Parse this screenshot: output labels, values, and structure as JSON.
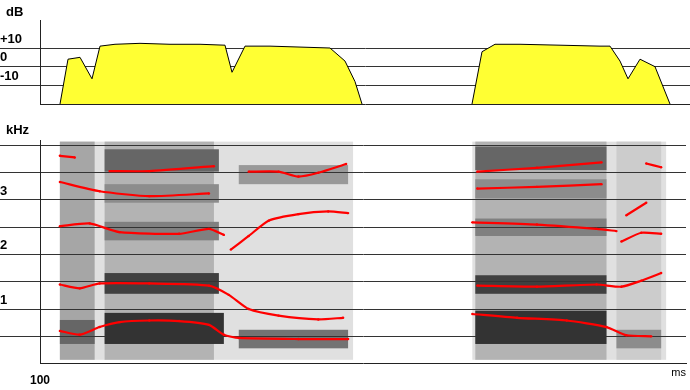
{
  "chart_data": [
    {
      "type": "area",
      "ylabel": "dB",
      "color": "#ffff33",
      "x": [
        120,
        128,
        140,
        152,
        160,
        175,
        200,
        230,
        260,
        285,
        292,
        305,
        330,
        360,
        390,
        405,
        415,
        422,
        480,
        532,
        542,
        555,
        580,
        620,
        660,
        670,
        680,
        688,
        700,
        715,
        730
      ],
      "values": [
        -20,
        4,
        5,
        -6.5,
        11,
        12,
        12.5,
        12,
        12,
        11.5,
        -3,
        11,
        11,
        10.5,
        10,
        3,
        -8,
        -20,
        null,
        -20,
        8,
        12,
        12,
        11.5,
        11,
        11,
        3,
        -6.5,
        4,
        0,
        -20
      ],
      "xlim": [
        100,
        750
      ],
      "ylim": [
        -20,
        25
      ],
      "yticks": [
        {
          "value": 10,
          "label": "+10"
        },
        0,
        -10
      ],
      "grid": true
    },
    {
      "type": "line",
      "ylabel": "kHz",
      "xlabel": "ms",
      "xlim": [
        100,
        750
      ],
      "xticks": [
        100
      ],
      "ylim": [
        0,
        4.1
      ],
      "yticks": [
        {
          "value": 0.5,
          "label": null
        },
        1,
        {
          "value": 1.5,
          "label": null
        },
        2,
        {
          "value": 2.5,
          "label": null
        },
        3,
        {
          "value": 3.5,
          "label": null
        },
        {
          "value": 4,
          "label": null
        }
      ],
      "grid": true,
      "spectrogram": [
        {
          "x": [
            120,
            415
          ],
          "y": [
            0.07,
            4.07
          ],
          "level": 0.12
        },
        {
          "x": [
            535,
            730
          ],
          "y": [
            0.07,
            4.07
          ],
          "level": 0.12
        },
        {
          "x": [
            165,
            275
          ],
          "y": [
            0.07,
            4.07
          ],
          "level": 0.3
        },
        {
          "x": [
            165,
            285
          ],
          "y": [
            0.36,
            0.93
          ],
          "level": 0.8
        },
        {
          "x": [
            165,
            280
          ],
          "y": [
            1.28,
            1.66
          ],
          "level": 0.75
        },
        {
          "x": [
            165,
            280
          ],
          "y": [
            2.26,
            2.6
          ],
          "level": 0.5
        },
        {
          "x": [
            165,
            280
          ],
          "y": [
            2.95,
            3.29
          ],
          "level": 0.45
        },
        {
          "x": [
            165,
            280
          ],
          "y": [
            3.52,
            3.93
          ],
          "level": 0.6
        },
        {
          "x": [
            120,
            155
          ],
          "y": [
            0.07,
            4.07
          ],
          "level": 0.35
        },
        {
          "x": [
            120,
            155
          ],
          "y": [
            0.36,
            0.8
          ],
          "level": 0.6
        },
        {
          "x": [
            300,
            410
          ],
          "y": [
            0.28,
            0.62
          ],
          "level": 0.55
        },
        {
          "x": [
            300,
            410
          ],
          "y": [
            3.29,
            3.64
          ],
          "level": 0.4
        },
        {
          "x": [
            538,
            670
          ],
          "y": [
            0.07,
            4.07
          ],
          "level": 0.3
        },
        {
          "x": [
            538,
            670
          ],
          "y": [
            0.36,
            0.97
          ],
          "level": 0.8
        },
        {
          "x": [
            538,
            670
          ],
          "y": [
            1.28,
            1.62
          ],
          "level": 0.75
        },
        {
          "x": [
            538,
            670
          ],
          "y": [
            2.34,
            2.66
          ],
          "level": 0.5
        },
        {
          "x": [
            538,
            670
          ],
          "y": [
            3.03,
            3.38
          ],
          "level": 0.45
        },
        {
          "x": [
            538,
            670
          ],
          "y": [
            3.55,
            3.98
          ],
          "level": 0.6
        },
        {
          "x": [
            680,
            725
          ],
          "y": [
            0.07,
            4.07
          ],
          "level": 0.2
        },
        {
          "x": [
            680,
            725
          ],
          "y": [
            0.28,
            0.62
          ],
          "level": 0.45
        }
      ],
      "series": [
        {
          "color": "#ff0000",
          "x": [
            120,
            140,
            160,
            180,
            210,
            240,
            270,
            285,
            300,
            360,
            410,
            470,
            535,
            580,
            630,
            670,
            690,
            715
          ],
          "values": [
            0.6,
            0.53,
            0.67,
            0.76,
            0.79,
            0.78,
            0.71,
            0.53,
            0.47,
            0.45,
            0.45,
            null,
            0.91,
            0.84,
            0.79,
            0.67,
            0.52,
            0.5
          ]
        },
        {
          "color": "#ff0000",
          "x": [
            120,
            140,
            160,
            210,
            270,
            290,
            310,
            340,
            380,
            405,
            470,
            540,
            600,
            660,
            685,
            705,
            725
          ],
          "values": [
            1.45,
            1.38,
            1.47,
            1.47,
            1.43,
            1.26,
            1.0,
            0.88,
            0.81,
            0.84,
            null,
            1.43,
            1.41,
            1.45,
            1.41,
            1.52,
            1.66
          ]
        },
        {
          "color": "#ff0000",
          "x": [
            120,
            150,
            180,
            240,
            270,
            285,
            288,
            292,
            310,
            330,
            360,
            390,
            410,
            470,
            535,
            600,
            660,
            680,
            683,
            685,
            705,
            725
          ],
          "values": [
            2.52,
            2.57,
            2.41,
            2.38,
            2.47,
            2.36,
            null,
            2.09,
            2.34,
            2.62,
            2.74,
            2.79,
            2.76,
            null,
            2.59,
            2.55,
            2.47,
            2.43,
            null,
            2.24,
            2.4,
            2.38
          ]
        },
        {
          "color": "#ff0000",
          "x": [
            120,
            160,
            210,
            270,
            290,
            310,
            340,
            360,
            380,
            408,
            470,
            540,
            600,
            665,
            680,
            690,
            710
          ],
          "values": [
            3.33,
            3.16,
            3.07,
            3.12,
            null,
            3.52,
            3.52,
            3.43,
            3.5,
            3.66,
            null,
            3.21,
            3.24,
            3.29,
            null,
            2.72,
            2.95
          ]
        },
        {
          "color": "#ff0000",
          "x": [
            120,
            135,
            150,
            170,
            210,
            275,
            480,
            540,
            600,
            665,
            680,
            710,
            725
          ],
          "values": [
            3.81,
            3.78,
            null,
            3.53,
            3.53,
            3.62,
            null,
            3.52,
            3.59,
            3.69,
            null,
            3.67,
            3.6
          ]
        }
      ]
    }
  ]
}
